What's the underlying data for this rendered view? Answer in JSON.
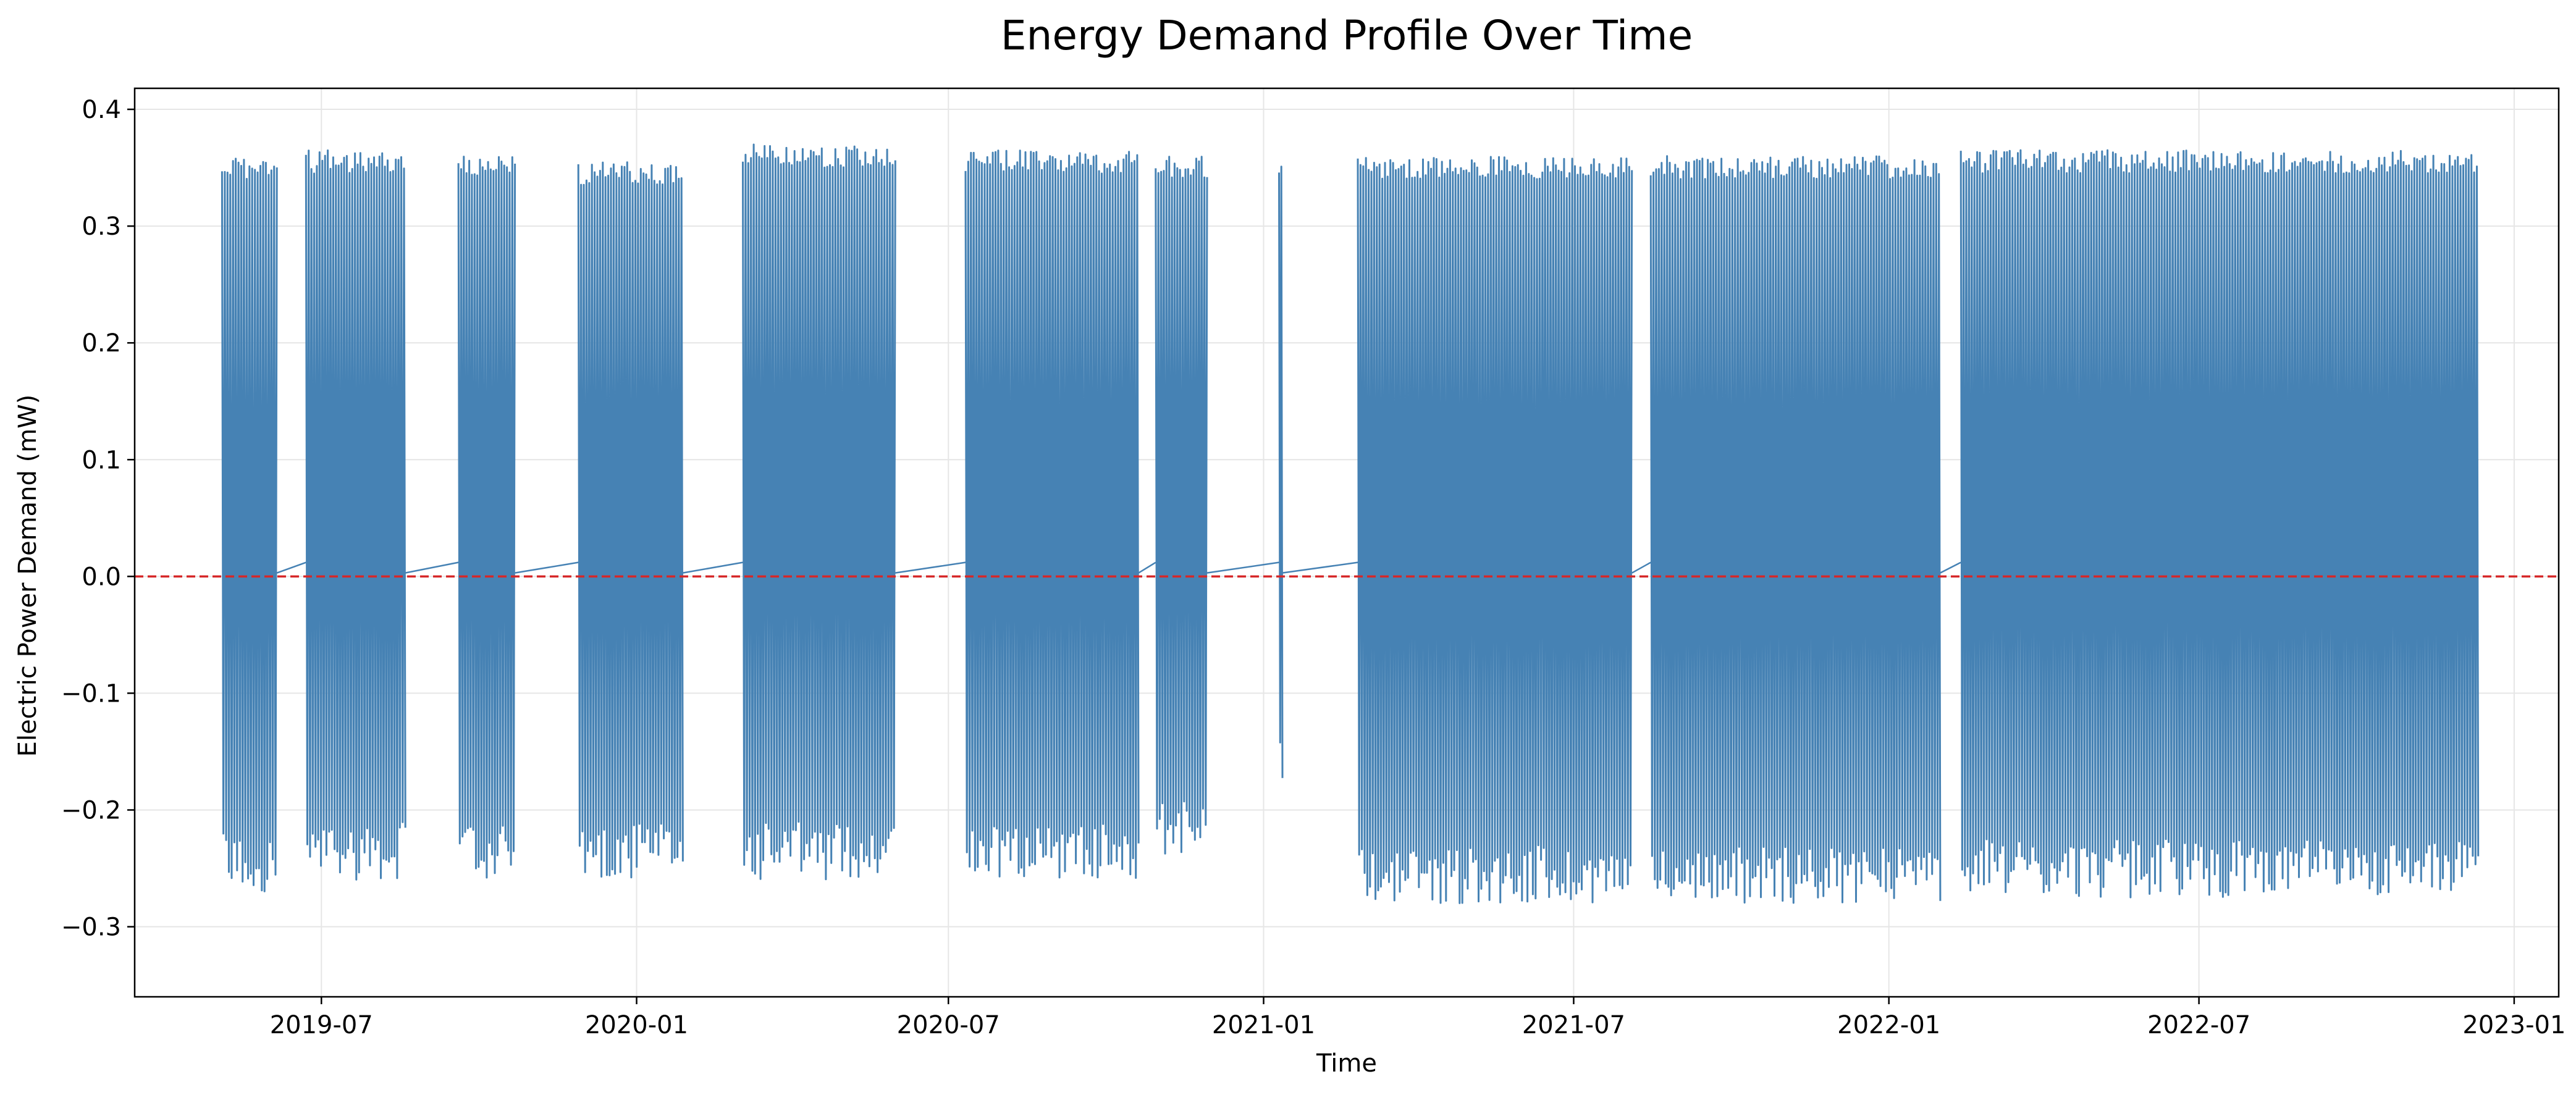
{
  "chart_data": {
    "type": "line",
    "title": "Energy Demand Profile Over Time",
    "xlabel": "Time",
    "ylabel": "Electric Power Demand (mW)",
    "xlim": [
      "2019-03-14",
      "2023-01-27"
    ],
    "ylim": [
      -0.36,
      0.418
    ],
    "x_ticks": [
      "2019-07-01",
      "2020-01-01",
      "2020-07-01",
      "2021-01-01",
      "2021-07-01",
      "2022-01-01",
      "2022-07-01",
      "2023-01-01"
    ],
    "x_tick_labels": [
      "2019-07",
      "2020-01",
      "2020-07",
      "2021-01",
      "2021-07",
      "2022-01",
      "2022-07",
      "2023-01"
    ],
    "y_ticks": [
      -0.3,
      -0.2,
      -0.1,
      0.0,
      0.1,
      0.2,
      0.3,
      0.4
    ],
    "y_tick_labels": [
      "−0.3",
      "−0.2",
      "−0.1",
      "0.0",
      "0.1",
      "0.2",
      "0.3",
      "0.4"
    ],
    "grid": true,
    "reference_line": {
      "y": 0.0,
      "style": "dashed",
      "color": "#d62728"
    },
    "colors": {
      "series": "#4682b4",
      "reference": "#d62728",
      "grid": "#e6e6e6"
    },
    "series": [
      {
        "approximate_envelope": true,
        "segments": [
          {
            "start": "2019-05-04",
            "end": "2019-06-05",
            "min": -0.31,
            "max": 0.36
          },
          {
            "start": "2019-06-22",
            "end": "2019-08-19",
            "min": -0.3,
            "max": 0.365
          },
          {
            "start": "2019-09-19",
            "end": "2019-10-22",
            "min": -0.3,
            "max": 0.36
          },
          {
            "start": "2019-11-28",
            "end": "2020-01-28",
            "min": -0.3,
            "max": 0.355
          },
          {
            "start": "2020-03-03",
            "end": "2020-05-31",
            "min": -0.3,
            "max": 0.37
          },
          {
            "start": "2020-07-11",
            "end": "2020-10-20",
            "min": -0.3,
            "max": 0.365
          },
          {
            "start": "2020-10-30",
            "end": "2020-11-29",
            "min": -0.28,
            "max": 0.36
          },
          {
            "start": "2021-01-10",
            "end": "2021-01-12",
            "min": -0.225,
            "max": 0.36
          },
          {
            "start": "2021-02-25",
            "end": "2021-08-04",
            "min": -0.32,
            "max": 0.36
          },
          {
            "start": "2021-08-15",
            "end": "2022-01-31",
            "min": -0.32,
            "max": 0.36
          },
          {
            "start": "2022-02-12",
            "end": "2022-12-11",
            "min": -0.315,
            "max": 0.365
          }
        ]
      }
    ]
  }
}
